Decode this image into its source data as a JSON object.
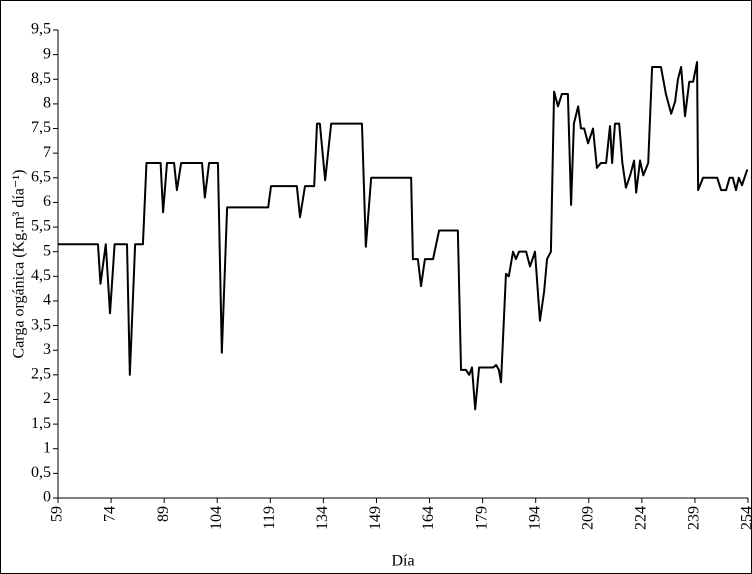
{
  "chart_data": {
    "type": "line",
    "x_label": "Día",
    "y_label": "Carga orgánica (Kg.m³ día⁻¹)",
    "xlim": [
      59,
      254
    ],
    "xticks": [
      59,
      74,
      89,
      104,
      119,
      134,
      149,
      164,
      179,
      194,
      209,
      224,
      239,
      254
    ],
    "ylim": [
      0,
      9.5
    ],
    "yticks": [
      0,
      {
        "value": 0.5,
        "label": "0,5"
      },
      1,
      {
        "value": 1.5,
        "label": "1,5"
      },
      2,
      {
        "value": 2.5,
        "label": "2,5"
      },
      3,
      {
        "value": 3.5,
        "label": "3,5"
      },
      4,
      {
        "value": 4.5,
        "label": "4,5"
      },
      5,
      {
        "value": 5.5,
        "label": "5,5"
      },
      6,
      {
        "value": 6.5,
        "label": "6,5"
      },
      7,
      {
        "value": 7.5,
        "label": "7,5"
      },
      8,
      {
        "value": 8.5,
        "label": "8,5"
      },
      9,
      {
        "value": 9.5,
        "label": "9,5"
      }
    ],
    "color": "#000000",
    "x": [
      59,
      70.3,
      71,
      72.5,
      73.7,
      75,
      78.5,
      79.3,
      80.8,
      83,
      84,
      88,
      88.7,
      89.8,
      91.8,
      92.6,
      93.8,
      99.7,
      100.5,
      101.7,
      104.2,
      105.3,
      106.8,
      118.4,
      119.2,
      126.5,
      127.4,
      128.8,
      131.4,
      132.2,
      133,
      134.5,
      136.2,
      144.9,
      146,
      147.5,
      158.8,
      159.3,
      160.7,
      161.6,
      162.7,
      165,
      166.7,
      172,
      172.9,
      174.3,
      175.2,
      176,
      176.9,
      178,
      182,
      182.8,
      183.6,
      184.2,
      185.6,
      186.4,
      187.6,
      188.4,
      189.3,
      191.3,
      192.4,
      193.8,
      195.2,
      196.4,
      197.2,
      198.3,
      199.2,
      200.3,
      201.4,
      203.1,
      204,
      204.8,
      206,
      206.8,
      207.7,
      208.8,
      210.2,
      211.3,
      212.4,
      213.9,
      215,
      215.6,
      216.4,
      217.6,
      218.5,
      219.5,
      220.7,
      221.8,
      222.4,
      223.5,
      224.4,
      225.8,
      226.9,
      229.4,
      230.8,
      232.3,
      233.4,
      234.2,
      235.1,
      236.2,
      237.4,
      238.5,
      239.6,
      239.9,
      241.3,
      245.3,
      246.4,
      247.8,
      248.8,
      249.7,
      250.6,
      251.4,
      252.3,
      253.7,
      254
    ],
    "values": [
      5.15,
      5.15,
      4.35,
      5.15,
      3.75,
      5.15,
      5.15,
      2.5,
      5.15,
      5.15,
      6.8,
      6.8,
      5.8,
      6.8,
      6.8,
      6.25,
      6.8,
      6.8,
      6.1,
      6.8,
      6.8,
      2.95,
      5.9,
      5.9,
      6.33,
      6.33,
      5.7,
      6.33,
      6.33,
      7.6,
      7.6,
      6.45,
      7.6,
      7.6,
      5.1,
      6.5,
      6.5,
      4.85,
      4.85,
      4.3,
      4.85,
      4.85,
      5.43,
      5.43,
      2.6,
      2.6,
      2.5,
      2.65,
      1.8,
      2.65,
      2.65,
      2.7,
      2.6,
      2.35,
      4.55,
      4.5,
      5.0,
      4.85,
      5.0,
      5.0,
      4.7,
      5.0,
      3.6,
      4.2,
      4.85,
      5.0,
      8.25,
      7.95,
      8.2,
      8.2,
      5.95,
      7.6,
      7.95,
      7.5,
      7.5,
      7.2,
      7.5,
      6.7,
      6.8,
      6.8,
      7.55,
      6.8,
      7.6,
      7.6,
      6.8,
      6.3,
      6.55,
      6.85,
      6.2,
      6.85,
      6.55,
      6.8,
      8.75,
      8.75,
      8.2,
      7.8,
      8.05,
      8.5,
      8.75,
      7.75,
      8.45,
      8.45,
      8.85,
      6.25,
      6.5,
      6.5,
      6.25,
      6.25,
      6.5,
      6.5,
      6.25,
      6.5,
      6.35,
      6.65,
      6.65
    ]
  }
}
